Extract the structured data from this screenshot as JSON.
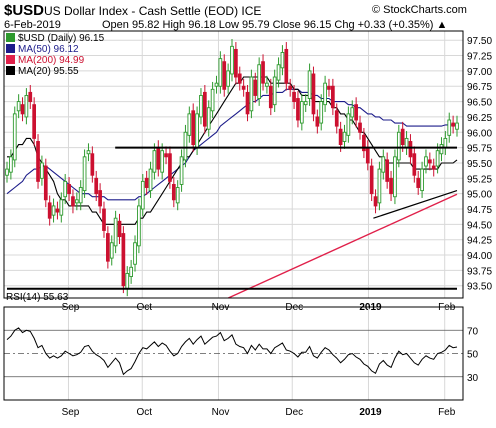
{
  "header": {
    "symbol": "$USD",
    "name": "US Dollar Index - Cash Settle (EOD) ICE",
    "date": "6-Feb-2019",
    "ohlc": "Open 95.82  High 96.18  Low 95.79  Close 96.15  Chg +0.33 (+0.35%) ▲",
    "credit": "© StockCharts.com"
  },
  "legend": {
    "price": "$USD (Daily) 96.15",
    "ma50": "MA(50) 96.12",
    "ma200": "MA(200) 94.99",
    "ma20": "MA(20) 95.55"
  },
  "rsi_label": "RSI(14) 55.63",
  "colors": {
    "up": "#2e9a2e",
    "down": "#cc1030",
    "ma50": "#1c1c8a",
    "ma200": "#e0204a",
    "ma20": "#000000",
    "grid": "#d8d8d8"
  },
  "chart_data": [
    {
      "type": "candlestick",
      "title": "$USD US Dollar Index - Cash Settle (EOD) ICE",
      "x_start": "2018-08-07",
      "x_end": "2019-02-06",
      "x_labels": [
        "Sep",
        "Oct",
        "Nov",
        "Dec",
        "2019",
        "Feb"
      ],
      "ylim": [
        93.3,
        97.65
      ],
      "y_ticks": [
        "93.50",
        "93.75",
        "94.00",
        "94.25",
        "94.50",
        "94.75",
        "95.00",
        "95.25",
        "95.50",
        "95.75",
        "96.00",
        "96.25",
        "96.50",
        "96.75",
        "97.00",
        "97.25",
        "97.50"
      ],
      "grid": true,
      "close": [
        95.4,
        95.6,
        96.3,
        96.5,
        96.3,
        96.6,
        96.5,
        95.9,
        95.2,
        95.5,
        94.9,
        94.6,
        94.8,
        94.7,
        94.9,
        95.2,
        95.0,
        94.8,
        94.9,
        95.1,
        95.6,
        95.7,
        95.3,
        95.0,
        94.8,
        94.4,
        93.9,
        94.2,
        94.6,
        94.3,
        93.5,
        93.7,
        93.8,
        94.2,
        94.8,
        95.2,
        95.1,
        95.4,
        95.7,
        95.4,
        95.7,
        95.6,
        95.2,
        94.9,
        95.1,
        95.6,
        96.0,
        96.3,
        95.8,
        96.3,
        96.6,
        96.1,
        96.4,
        96.7,
        96.8,
        97.2,
        96.7,
        97.0,
        97.4,
        96.9,
        96.8,
        96.7,
        96.3,
        96.9,
        96.6,
        97.1,
        96.8,
        96.8,
        96.4,
        96.9,
        97.1,
        97.3,
        96.8,
        96.7,
        96.5,
        96.2,
        96.5,
        96.5,
        97.0,
        96.3,
        96.1,
        96.5,
        96.8,
        96.7,
        96.4,
        96.1,
        95.8,
        96.0,
        96.3,
        96.4,
        96.2,
        96.0,
        95.7,
        95.5,
        95.0,
        94.8,
        95.4,
        95.6,
        95.2,
        95.0,
        95.6,
        96.0,
        95.8,
        95.9,
        95.6,
        95.3,
        95.1,
        95.4,
        95.6,
        95.5,
        95.4,
        95.7,
        95.8,
        95.9,
        96.2,
        96.1,
        96.15
      ],
      "ma20": [
        95.6,
        95.6,
        95.7,
        95.8,
        95.8,
        95.9,
        95.9,
        95.8,
        95.6,
        95.5,
        95.4,
        95.3,
        95.2,
        95.0,
        94.9,
        94.9,
        94.8,
        94.8,
        94.8,
        94.8,
        94.8,
        94.8,
        94.7,
        94.7,
        94.6,
        94.5,
        94.5,
        94.5,
        94.5,
        94.5,
        94.5,
        94.5,
        94.5,
        94.5,
        94.6,
        94.6,
        94.7,
        94.7,
        94.8,
        94.9,
        95.0,
        95.1,
        95.2,
        95.3,
        95.4,
        95.5,
        95.6,
        95.6,
        95.7,
        95.8,
        95.9,
        96.0,
        96.1,
        96.2,
        96.3,
        96.4,
        96.5,
        96.6,
        96.7,
        96.8,
        96.8,
        96.9,
        96.9,
        96.9,
        96.9,
        96.9,
        96.9,
        96.9,
        96.8,
        96.8,
        96.8,
        96.8,
        96.8,
        96.8,
        96.7,
        96.7,
        96.6,
        96.6,
        96.6,
        96.5,
        96.5,
        96.5,
        96.5,
        96.5,
        96.4,
        96.4,
        96.3,
        96.3,
        96.2,
        96.2,
        96.1,
        96.0,
        96.0,
        95.9,
        95.8,
        95.7,
        95.6,
        95.6,
        95.5,
        95.5,
        95.5,
        95.5,
        95.5,
        95.5,
        95.5,
        95.4,
        95.4,
        95.4,
        95.4,
        95.4,
        95.4,
        95.4,
        95.5,
        95.5,
        95.5,
        95.5,
        95.55
      ],
      "ma50": [
        95.0,
        95.05,
        95.1,
        95.15,
        95.2,
        95.3,
        95.35,
        95.4,
        95.4,
        95.45,
        95.45,
        95.4,
        95.35,
        95.3,
        95.25,
        95.2,
        95.15,
        95.1,
        95.05,
        95.0,
        95.0,
        95.0,
        94.95,
        94.95,
        94.95,
        94.95,
        94.9,
        94.9,
        94.9,
        94.9,
        94.9,
        94.9,
        94.9,
        94.9,
        94.95,
        94.95,
        95.0,
        95.05,
        95.1,
        95.15,
        95.2,
        95.25,
        95.3,
        95.35,
        95.4,
        95.45,
        95.5,
        95.6,
        95.7,
        95.75,
        95.8,
        95.85,
        95.9,
        95.95,
        96.0,
        96.1,
        96.15,
        96.2,
        96.25,
        96.3,
        96.35,
        96.4,
        96.45,
        96.5,
        96.5,
        96.55,
        96.6,
        96.6,
        96.6,
        96.65,
        96.65,
        96.65,
        96.7,
        96.7,
        96.7,
        96.7,
        96.65,
        96.65,
        96.65,
        96.6,
        96.6,
        96.55,
        96.55,
        96.55,
        96.5,
        96.5,
        96.5,
        96.5,
        96.45,
        96.45,
        96.4,
        96.4,
        96.35,
        96.3,
        96.3,
        96.25,
        96.25,
        96.2,
        96.2,
        96.2,
        96.15,
        96.15,
        96.15,
        96.1,
        96.1,
        96.1,
        96.1,
        96.1,
        96.1,
        96.1,
        96.1,
        96.1,
        96.1,
        96.12,
        96.12,
        96.12,
        96.12
      ],
      "ma200": [
        {
          "x": "2018-11-05",
          "y": 93.3
        },
        {
          "x": "2019-02-06",
          "y": 94.99
        }
      ],
      "annotations": [
        {
          "type": "hline",
          "y": 95.75,
          "x_from": "2018-09-20",
          "x_to": "2019-02-06"
        },
        {
          "type": "hline",
          "y": 93.45,
          "x_from": "2018-08-07",
          "x_to": "2019-02-06"
        },
        {
          "type": "trendline",
          "from": {
            "x": "2019-01-03",
            "y": 94.6
          },
          "to": {
            "x": "2019-02-06",
            "y": 95.05
          }
        }
      ]
    },
    {
      "type": "line",
      "title": "RSI(14) 55.63",
      "ylim": [
        10,
        90
      ],
      "y_ticks": [
        "10",
        "30",
        "50",
        "70",
        "90"
      ],
      "reference_lines": [
        30,
        50,
        70
      ],
      "rsi": [
        62,
        65,
        70,
        72,
        68,
        70,
        69,
        63,
        55,
        57,
        50,
        46,
        48,
        46,
        48,
        52,
        50,
        48,
        49,
        51,
        56,
        57,
        52,
        49,
        47,
        44,
        38,
        42,
        46,
        42,
        32,
        35,
        37,
        43,
        50,
        55,
        54,
        57,
        60,
        56,
        59,
        57,
        52,
        48,
        50,
        56,
        60,
        63,
        58,
        62,
        65,
        58,
        61,
        64,
        65,
        68,
        61,
        63,
        66,
        58,
        56,
        55,
        50,
        57,
        53,
        58,
        54,
        54,
        50,
        55,
        57,
        59,
        53,
        52,
        50,
        47,
        51,
        51,
        56,
        48,
        46,
        51,
        55,
        53,
        49,
        46,
        42,
        45,
        49,
        50,
        47,
        45,
        41,
        39,
        35,
        33,
        41,
        44,
        40,
        38,
        46,
        52,
        49,
        50,
        46,
        42,
        40,
        45,
        48,
        46,
        45,
        50,
        51,
        53,
        57,
        55,
        55.63
      ]
    }
  ]
}
